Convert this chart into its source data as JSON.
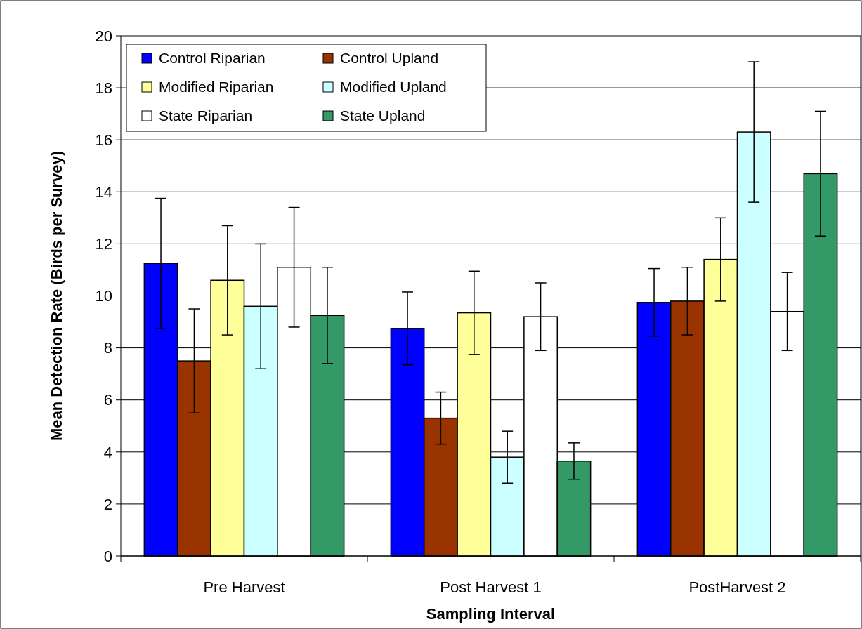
{
  "chart_data": {
    "type": "bar",
    "xlabel": "Sampling Interval",
    "ylabel": "Mean Detection Rate (Birds per Survey)",
    "categories": [
      "Pre Harvest",
      "Post Harvest 1",
      "PostHarvest 2"
    ],
    "series": [
      {
        "name": "Control Riparian",
        "color": "#0000ff",
        "values": [
          11.25,
          8.75,
          9.75
        ],
        "errors": [
          2.5,
          1.4,
          1.3
        ]
      },
      {
        "name": "Control Upland",
        "color": "#993300",
        "values": [
          7.5,
          5.3,
          9.8
        ],
        "errors": [
          2.0,
          1.0,
          1.3
        ]
      },
      {
        "name": "Modified Riparian",
        "color": "#ffff99",
        "values": [
          10.6,
          9.35,
          11.4
        ],
        "errors": [
          2.1,
          1.6,
          1.6
        ]
      },
      {
        "name": "Modified Upland",
        "color": "#ccffff",
        "values": [
          9.6,
          3.8,
          16.3
        ],
        "errors": [
          2.4,
          1.0,
          2.7
        ]
      },
      {
        "name": "State Riparian",
        "color": "#ffffff",
        "values": [
          11.1,
          9.2,
          9.4
        ],
        "errors": [
          2.3,
          1.3,
          1.5
        ]
      },
      {
        "name": "State Upland",
        "color": "#339966",
        "values": [
          9.25,
          3.65,
          14.7
        ],
        "errors": [
          1.85,
          0.7,
          2.4
        ]
      }
    ],
    "ylim": [
      0,
      20
    ],
    "yticks": [
      0,
      2,
      4,
      6,
      8,
      10,
      12,
      14,
      16,
      18,
      20
    ],
    "grid": "y",
    "legend": "top left"
  }
}
